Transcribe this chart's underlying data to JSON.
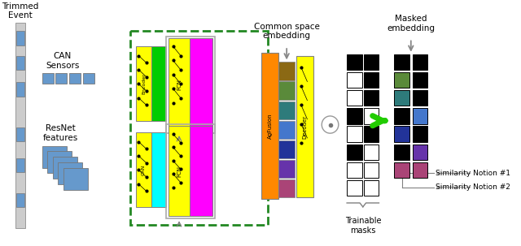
{
  "fig_width": 6.4,
  "fig_height": 3.03,
  "dpi": 100,
  "bg_color": "#ffffff",
  "trimmed_event_label": "Trimmed\nEvent",
  "can_sensors_label": "CAN\nSensors",
  "resnet_features_label": "ResNet\nfeatures",
  "common_space_label": "Common space\nembedding",
  "masked_embedding_label": "Masked\nembedding",
  "trainable_masks_label": "Trainable\nmasks",
  "similarity1_label": "Similarity Notion #1",
  "similarity2_label": "Similarity Notion #2",
  "strip_blue": "#6699cc",
  "strip_gray": "#cccccc",
  "yellow": "#ffff00",
  "green": "#00cc00",
  "cyan": "#00ffff",
  "magenta": "#ff00ff",
  "orange": "#ff8800",
  "brown": "#8B6914",
  "olive": "#5a8a3a",
  "teal": "#2e7b7b",
  "blue_mid": "#4477cc",
  "blue_dark": "#223399",
  "purple": "#6633aa",
  "mauve": "#aa4477",
  "dashed_green": "#228822",
  "black": "#000000",
  "white": "#ffffff",
  "dark_gray": "#555555",
  "med_gray": "#888888",
  "green_arrow": "#22cc00"
}
